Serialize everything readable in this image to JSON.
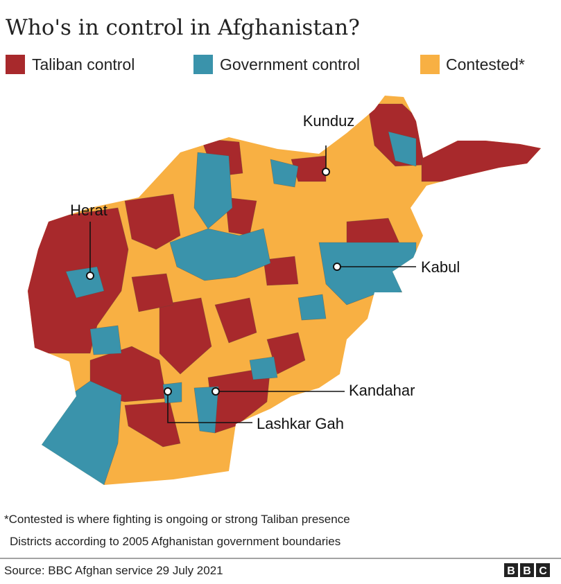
{
  "title": "Who's in control in Afghanistan?",
  "legend": [
    {
      "label": "Taliban control",
      "color": "#a8292c"
    },
    {
      "label": "Government control",
      "color": "#3a93ab"
    },
    {
      "label": "Contested*",
      "color": "#f8b043"
    }
  ],
  "cities": [
    {
      "label": "Kunduz"
    },
    {
      "label": "Herat"
    },
    {
      "label": "Kabul"
    },
    {
      "label": "Kandahar"
    },
    {
      "label": "Lashkar Gah"
    }
  ],
  "footnotes": [
    "*Contested is where fighting is ongoing or strong Taliban presence",
    "Districts according to 2005 Afghanistan government boundaries"
  ],
  "source": "Source: BBC Afghan service 29 July 2021",
  "logo": [
    "B",
    "B",
    "C"
  ]
}
